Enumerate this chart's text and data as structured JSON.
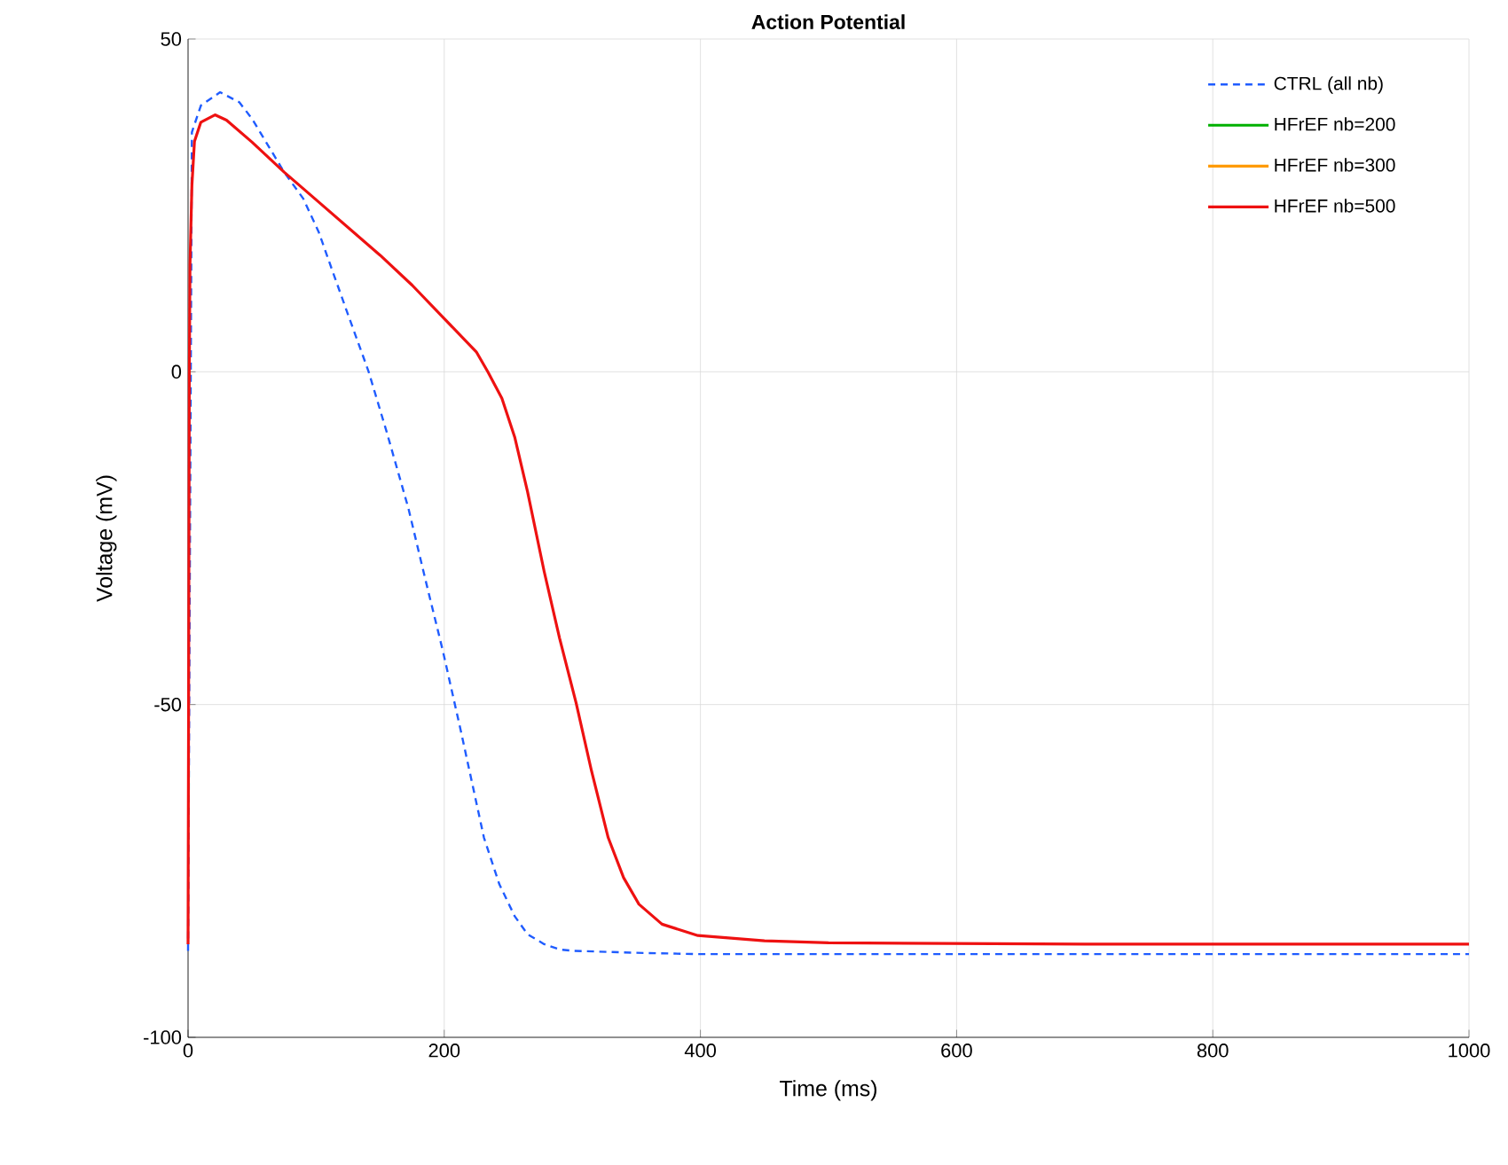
{
  "chart_data": {
    "type": "line",
    "title": "Action Potential",
    "xlabel": "Time (ms)",
    "ylabel": "Voltage (mV)",
    "xlim": [
      0,
      1000
    ],
    "ylim": [
      -100,
      50
    ],
    "xticks": [
      0,
      200,
      400,
      600,
      800,
      1000
    ],
    "yticks": [
      -100,
      -50,
      0,
      50
    ],
    "grid": true,
    "legend": "top right",
    "series": [
      {
        "name": "CTRL (all nb)",
        "color": "#1f5cff",
        "line_style": "dashed",
        "x": [
          0,
          3,
          10,
          25,
          40,
          50,
          75,
          90,
          102,
          113,
          126,
          141,
          155,
          172,
          185,
          199,
          213,
          222,
          231,
          243,
          255,
          265,
          278,
          290,
          301,
          350,
          400,
          600,
          800,
          1000
        ],
        "values": [
          -87,
          36,
          40,
          42,
          40.5,
          38,
          30,
          26,
          21,
          15,
          8,
          0,
          -9,
          -20.5,
          -31,
          -42,
          -54,
          -62,
          -70,
          -77,
          -81.8,
          -84.5,
          -86,
          -86.8,
          -87,
          -87.3,
          -87.5,
          -87.5,
          -87.5,
          -87.5
        ]
      },
      {
        "name": "HFrEF nb=200",
        "color": "#00b000",
        "line_style": "solid"
      },
      {
        "name": "HFrEF nb=300",
        "color": "#ff9a00",
        "line_style": "solid"
      },
      {
        "name": "HFrEF nb=500",
        "color": "#ee1111",
        "line_style": "solid",
        "x": [
          0,
          1,
          1.5,
          3,
          5,
          10,
          21,
          30,
          50,
          75,
          102,
          150,
          175,
          200,
          215,
          225,
          234,
          245,
          255,
          265,
          278,
          290,
          303,
          315,
          328,
          340,
          352,
          370,
          398,
          450,
          500,
          700,
          1000
        ],
        "values": [
          -86,
          0,
          16,
          28,
          34.6,
          37.5,
          38.6,
          37.8,
          34.5,
          30,
          25.5,
          17.5,
          13,
          8,
          5,
          3,
          0,
          -4,
          -9.8,
          -18,
          -30,
          -40,
          -49.8,
          -60,
          -70,
          -76,
          -80,
          -83,
          -84.7,
          -85.5,
          -85.8,
          -86,
          -86
        ]
      }
    ]
  }
}
